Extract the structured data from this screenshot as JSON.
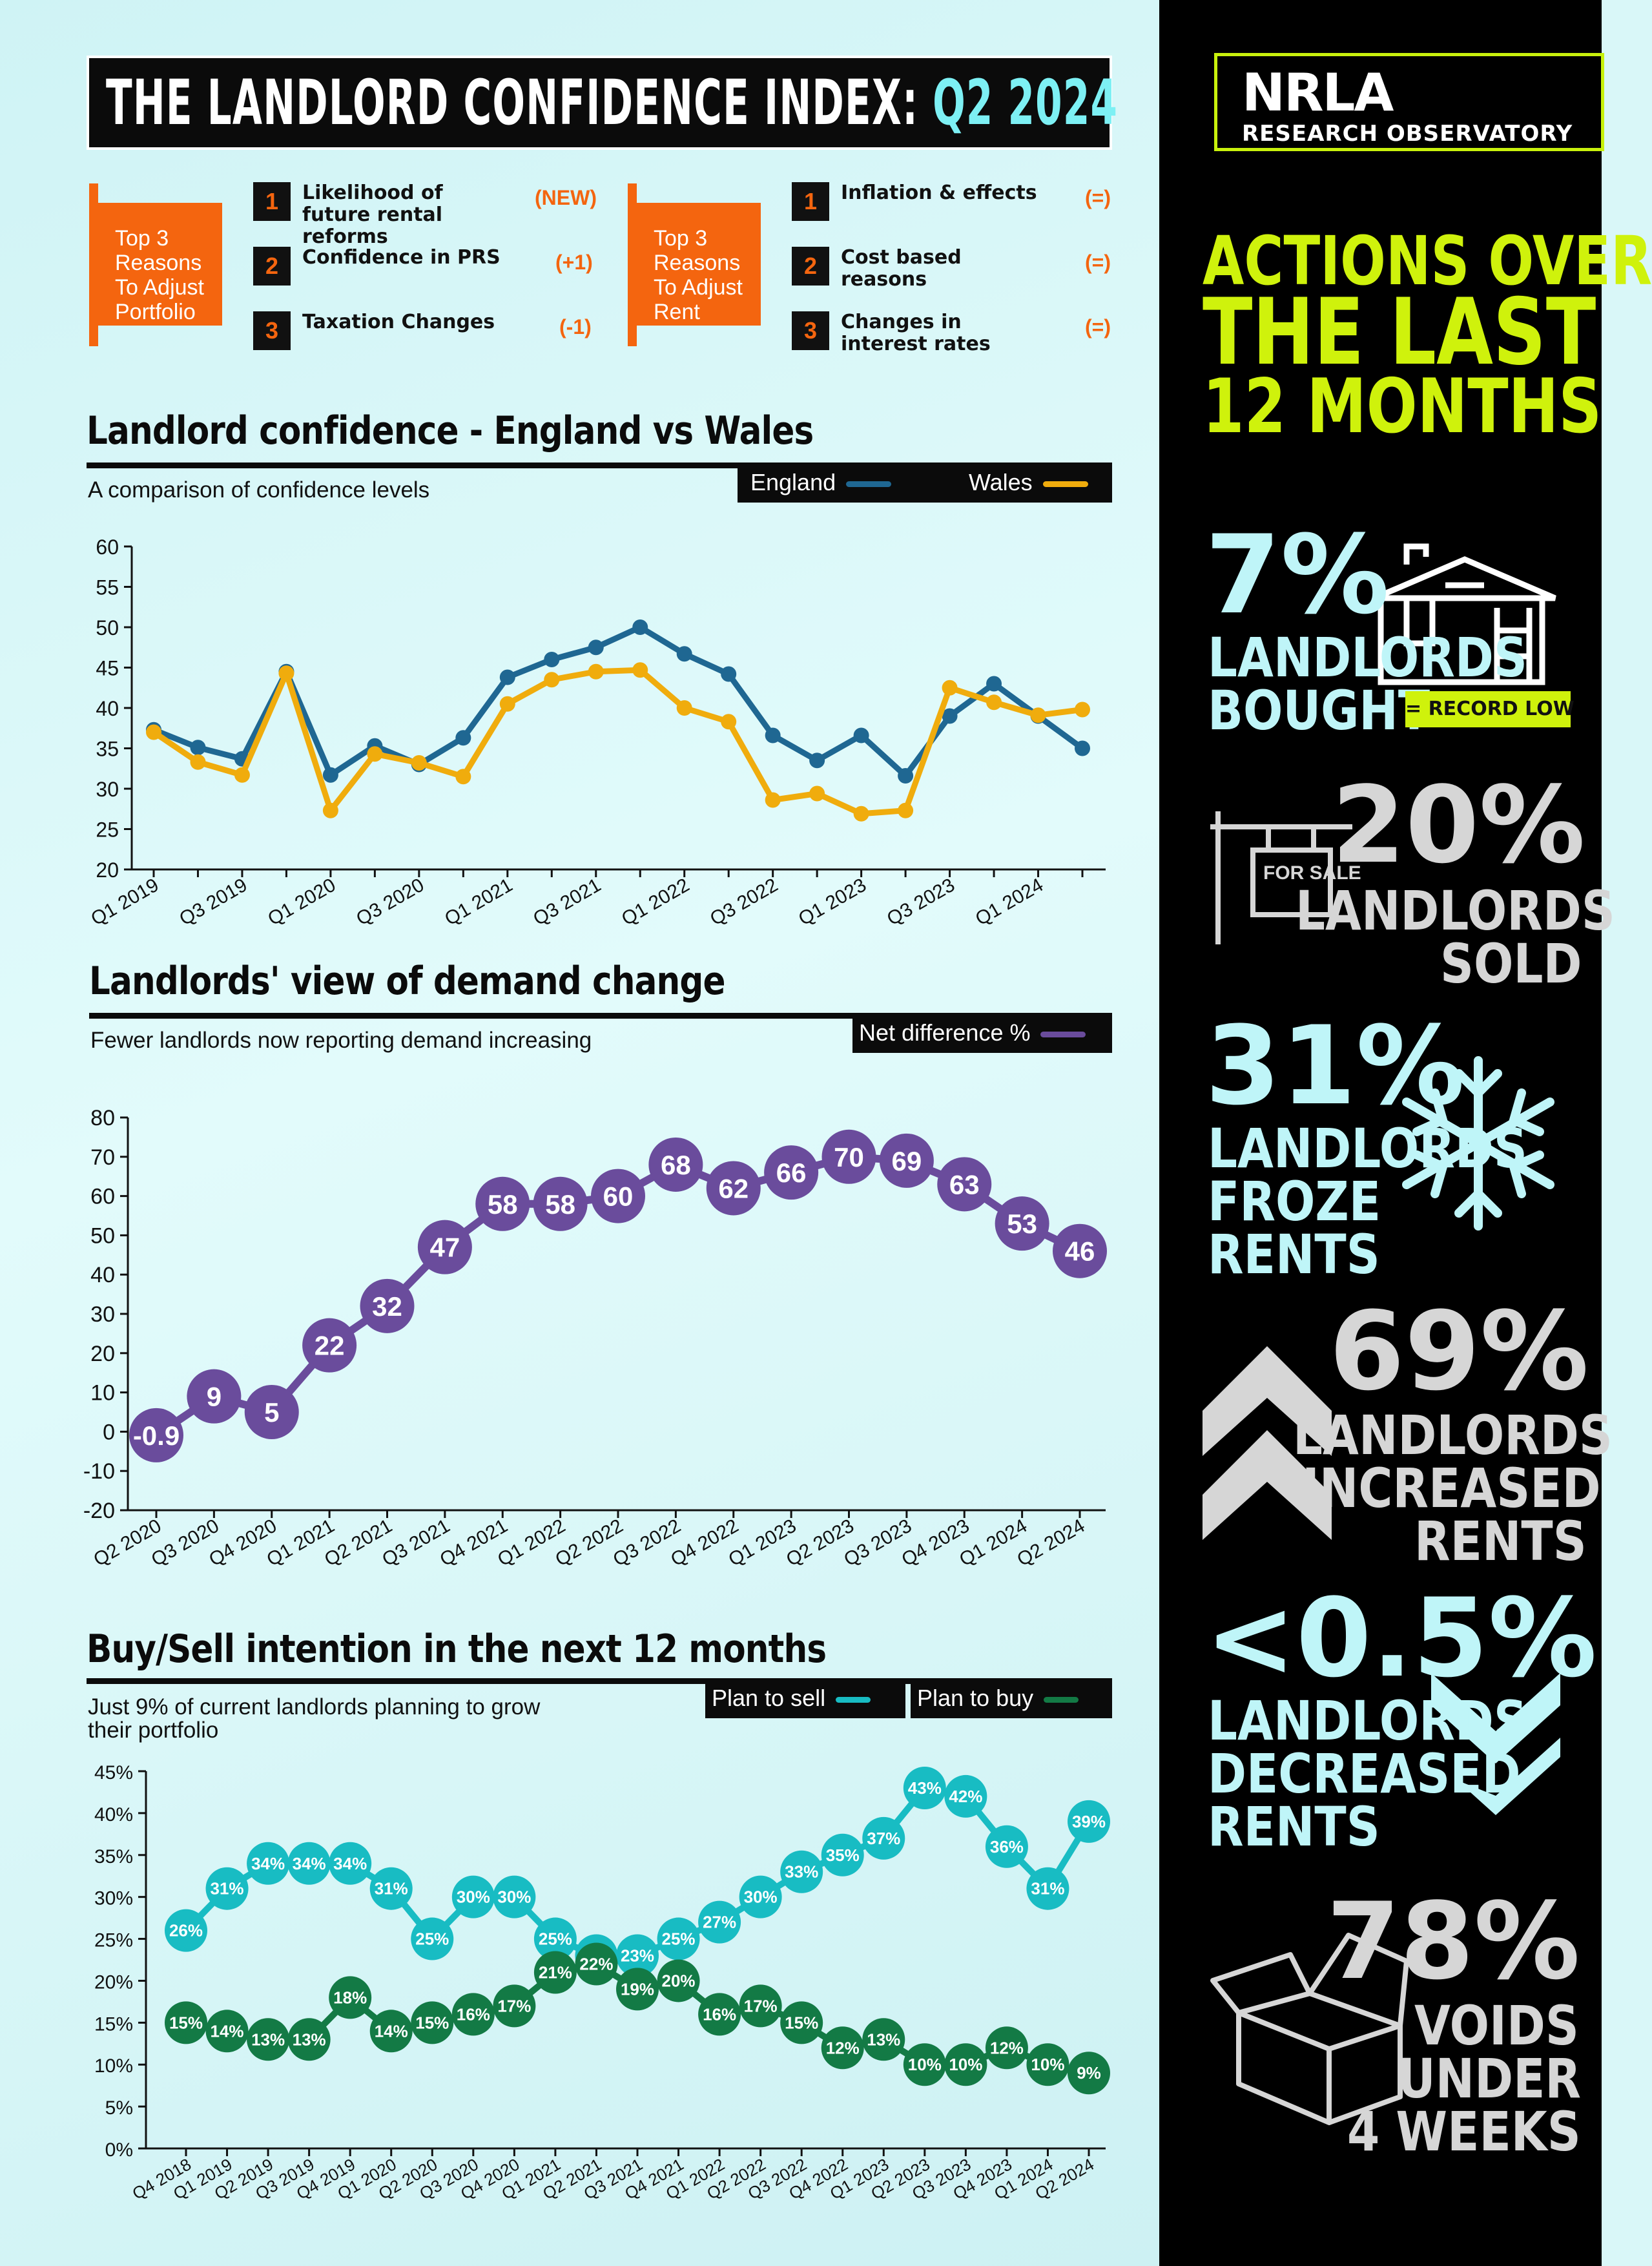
{
  "title": {
    "main": "THE LANDLORD CONFIDENCE INDEX:",
    "quarter": "Q2 2024"
  },
  "portfolio_reasons": {
    "tab": "Top 3 Reasons To Adjust Portfolio",
    "items": [
      {
        "num": "1",
        "text": "Likelihood of future rental reforms",
        "change": "(NEW)"
      },
      {
        "num": "2",
        "text": "Confidence in PRS",
        "change": "(+1)"
      },
      {
        "num": "3",
        "text": "Taxation Changes",
        "change": "(-1)"
      }
    ]
  },
  "rent_reasons": {
    "tab": "Top 3 Reasons To Adjust Rent",
    "items": [
      {
        "num": "1",
        "text": "Inflation & effects",
        "change": "(=)"
      },
      {
        "num": "2",
        "text": "Cost based reasons",
        "change": "(=)"
      },
      {
        "num": "3",
        "text": "Changes in interest rates",
        "change": "(=)"
      }
    ]
  },
  "confidence": {
    "title": "Landlord confidence - England vs Wales",
    "subtitle": "A comparison of confidence levels",
    "legend": {
      "england": "England",
      "wales": "Wales"
    }
  },
  "demand": {
    "title": "Landlords' view of demand change",
    "subtitle": "Fewer landlords now reporting demand increasing",
    "legend": "Net difference %"
  },
  "buysell": {
    "title": "Buy/Sell intention in the next 12 months",
    "subtitle_line1": "Just 9% of current landlords planning to grow",
    "subtitle_line2": "their portfolio",
    "legend": {
      "sell": "Plan to sell",
      "buy": "Plan to buy"
    }
  },
  "logo": {
    "main": "NRLA",
    "sub": "RESEARCH OBSERVATORY"
  },
  "actions": {
    "line1": "ACTIONS OVER",
    "line2": "THE LAST",
    "line3": "12 MONTHS"
  },
  "stats": {
    "bought": {
      "value": "7%",
      "line1": "LANDLORDS",
      "line2": "BOUGHT",
      "badge": "= RECORD LOW"
    },
    "sold": {
      "value": "20%",
      "line1": "LANDLORDS",
      "line2": "SOLD",
      "sign": "FOR SALE"
    },
    "froze": {
      "value": "31%",
      "line1": "LANDLORDS",
      "line2": "FROZE",
      "line3": "RENTS"
    },
    "increased": {
      "value": "69%",
      "line1": "LANDLORDS",
      "line2": "INCREASED",
      "line3": "RENTS"
    },
    "decreased": {
      "value": "<0.5%",
      "line1": "LANDLORDS",
      "line2": "DECREASED",
      "line3": "RENTS"
    },
    "voids": {
      "value": "78%",
      "line1": "VOIDS",
      "line2": "UNDER",
      "line3": "4 WEEKS"
    }
  },
  "colors": {
    "england": "#1f6792",
    "wales": "#f0ac0d",
    "demand": "#6a4c9c",
    "sell": "#18bcc3",
    "buy": "#137a45",
    "accent": "#f4650f",
    "lime": "#cff20c"
  },
  "chart_data": [
    {
      "type": "line",
      "title": "Landlord confidence - England vs Wales",
      "x": [
        "Q1 2019",
        "Q2 2019",
        "Q3 2019",
        "Q4 2019",
        "Q1 2020",
        "Q2 2020",
        "Q3 2020",
        "Q4 2020",
        "Q1 2021",
        "Q2 2021",
        "Q3 2021",
        "Q4 2021",
        "Q1 2022",
        "Q2 2022",
        "Q3 2022",
        "Q4 2022",
        "Q1 2023",
        "Q2 2023",
        "Q3 2023",
        "Q4 2023",
        "Q1 2024",
        "Q2 2024"
      ],
      "xticklabels": [
        "Q1 2019",
        "",
        "Q3 2019",
        "",
        "Q1 2020",
        "",
        "Q3 2020",
        "",
        "Q1 2021",
        "",
        "Q3 2021",
        "",
        "Q1 2022",
        "",
        "Q3 2022",
        "",
        "Q1 2023",
        "",
        "Q3 2023",
        "",
        "Q1 2024",
        ""
      ],
      "ylim": [
        20,
        60
      ],
      "yticks": [
        20,
        25,
        30,
        35,
        40,
        45,
        50,
        55,
        60
      ],
      "series": [
        {
          "name": "England",
          "values": [
            37.3,
            35.1,
            33.7,
            44.5,
            31.7,
            35.3,
            33.0,
            36.3,
            43.8,
            46.0,
            47.5,
            50.0,
            46.7,
            44.2,
            36.6,
            33.5,
            36.6,
            31.6,
            39.0,
            43.0,
            39.0,
            35.0
          ]
        },
        {
          "name": "Wales",
          "values": [
            37.0,
            33.3,
            31.7,
            44.3,
            27.3,
            34.3,
            33.2,
            31.5,
            40.5,
            43.5,
            44.5,
            44.7,
            40.0,
            38.3,
            28.6,
            29.4,
            26.9,
            27.3,
            42.5,
            40.7,
            39.1,
            39.8
          ]
        }
      ]
    },
    {
      "type": "line",
      "title": "Landlords' view of demand change",
      "x": [
        "Q2 2020",
        "Q3 2020",
        "Q4 2020",
        "Q1 2021",
        "Q2 2021",
        "Q3 2021",
        "Q4 2021",
        "Q1 2022",
        "Q2 2022",
        "Q3 2022",
        "Q4 2022",
        "Q1 2023",
        "Q2 2023",
        "Q3 2023",
        "Q4 2023",
        "Q1 2024",
        "Q2 2024"
      ],
      "ylim": [
        -20,
        80
      ],
      "yticks": [
        -20,
        -10,
        0,
        10,
        20,
        30,
        40,
        50,
        60,
        70,
        80
      ],
      "series": [
        {
          "name": "Net difference %",
          "values": [
            -0.9,
            9,
            5,
            22,
            32,
            47,
            58,
            58,
            60,
            68,
            62,
            66,
            70,
            69,
            63,
            53,
            46
          ],
          "labels": [
            "-0.9",
            "9",
            "5",
            "22",
            "32",
            "47",
            "58",
            "58",
            "60",
            "68",
            "62",
            "66",
            "70",
            "69",
            "63",
            "53",
            "46"
          ]
        }
      ]
    },
    {
      "type": "line",
      "title": "Buy/Sell intention in the next 12 months",
      "x": [
        "Q4 2018",
        "Q1 2019",
        "Q2 2019",
        "Q3 2019",
        "Q4 2019",
        "Q1 2020",
        "Q2 2020",
        "Q3 2020",
        "Q4 2020",
        "Q1 2021",
        "Q2 2021",
        "Q3 2021",
        "Q4 2021",
        "Q1 2022",
        "Q2 2022",
        "Q3 2022",
        "Q4 2022",
        "Q1 2023",
        "Q2 2023",
        "Q3 2023",
        "Q4 2023",
        "Q1 2024",
        "Q2 2024"
      ],
      "ylim": [
        0,
        45
      ],
      "yticks": [
        "0%",
        "5%",
        "10%",
        "15%",
        "20%",
        "25%",
        "30%",
        "35%",
        "40%",
        "45%"
      ],
      "series": [
        {
          "name": "Plan to sell",
          "values": [
            26,
            31,
            34,
            34,
            34,
            31,
            25,
            30,
            30,
            25,
            23,
            23,
            25,
            27,
            30,
            33,
            35,
            37,
            43,
            42,
            36,
            31,
            39
          ]
        },
        {
          "name": "Plan to buy",
          "values": [
            15,
            14,
            13,
            13,
            18,
            14,
            15,
            16,
            17,
            21,
            22,
            19,
            20,
            16,
            17,
            15,
            12,
            13,
            10,
            10,
            12,
            10,
            9
          ]
        }
      ]
    }
  ]
}
